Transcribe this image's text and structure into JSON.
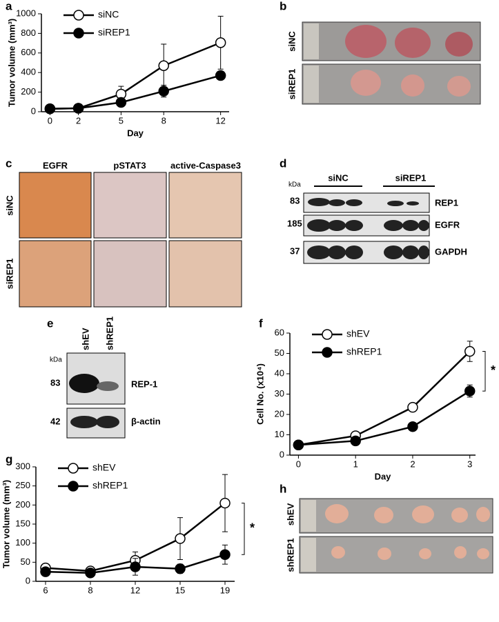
{
  "panel_letters": [
    "a",
    "b",
    "c",
    "d",
    "e",
    "f",
    "g",
    "h"
  ],
  "chart_data": [
    {
      "type": "line",
      "x": [
        0,
        2,
        5,
        8,
        12
      ],
      "xlim": [
        -0.6,
        12.6
      ],
      "xticks": [
        0,
        2,
        5,
        8,
        12
      ],
      "ylim": [
        0,
        1000
      ],
      "yticks": [
        0,
        200,
        400,
        600,
        800,
        1000
      ],
      "xlabel": "Day",
      "ylabel": "Tumor volume (mm³)",
      "legend": "upper left",
      "series": [
        {
          "name": "siNC",
          "color": "#000000",
          "marker_fill": "#ffffff",
          "values": [
            30,
            35,
            180,
            470,
            705
          ],
          "errors": [
            10,
            10,
            80,
            220,
            270
          ]
        },
        {
          "name": "siREP1",
          "color": "#000000",
          "marker_fill": "#000000",
          "values": [
            30,
            35,
            95,
            210,
            370
          ],
          "errors": [
            10,
            10,
            20,
            60,
            20
          ]
        }
      ]
    },
    {
      "type": "line",
      "x": [
        0,
        1,
        2,
        3
      ],
      "xlim": [
        -0.15,
        3.1
      ],
      "xticks": [
        0,
        1,
        2,
        3
      ],
      "ylim": [
        0,
        60
      ],
      "yticks": [
        0,
        10,
        20,
        30,
        40,
        50,
        60
      ],
      "xlabel": "Day",
      "ylabel": "Cell No. (x10⁴)",
      "legend": "upper left",
      "annotation": "*",
      "series": [
        {
          "name": "shEV",
          "color": "#000000",
          "marker_fill": "#ffffff",
          "values": [
            5,
            9.5,
            23.5,
            51
          ],
          "errors": [
            0.5,
            1,
            1,
            5
          ]
        },
        {
          "name": "shREP1",
          "color": "#000000",
          "marker_fill": "#000000",
          "values": [
            5,
            7,
            14,
            31.5
          ],
          "errors": [
            0.5,
            0.5,
            1,
            3
          ]
        }
      ]
    },
    {
      "type": "line",
      "categories": [
        "6",
        "8",
        "12",
        "15",
        "19"
      ],
      "ylim": [
        0,
        300
      ],
      "yticks": [
        0,
        50,
        100,
        150,
        200,
        250,
        300
      ],
      "ylabel": "Tumor volume (mm³)",
      "legend": "upper left",
      "annotation": "*",
      "series": [
        {
          "name": "shEV",
          "color": "#000000",
          "marker_fill": "#ffffff",
          "values": [
            35,
            27,
            55,
            112,
            205
          ],
          "errors": [
            10,
            5,
            22,
            55,
            75
          ]
        },
        {
          "name": "shREP1",
          "color": "#000000",
          "marker_fill": "#000000",
          "values": [
            25,
            22,
            38,
            33,
            70
          ],
          "errors": [
            10,
            5,
            22,
            12,
            25
          ]
        }
      ]
    }
  ],
  "panel_b": {
    "rows": [
      "siNC",
      "siREP1"
    ]
  },
  "panel_c": {
    "columns": [
      "EGFR",
      "pSTAT3",
      "active-Caspase3"
    ],
    "rows": [
      "siNC",
      "siREP1"
    ]
  },
  "panel_d": {
    "unit": "kDa",
    "groups": [
      "siNC",
      "siREP1"
    ],
    "bands": [
      {
        "size": 83,
        "label": "REP1"
      },
      {
        "size": 185,
        "label": "EGFR"
      },
      {
        "size": 37,
        "label": "GAPDH"
      }
    ]
  },
  "panel_e": {
    "unit": "kDa",
    "lanes": [
      "shEV",
      "shREP1"
    ],
    "bands": [
      {
        "size": 83,
        "label": "REP-1"
      },
      {
        "size": 42,
        "label": "β-actin"
      }
    ]
  },
  "panel_h": {
    "rows": [
      "shEV",
      "shREP1"
    ]
  }
}
